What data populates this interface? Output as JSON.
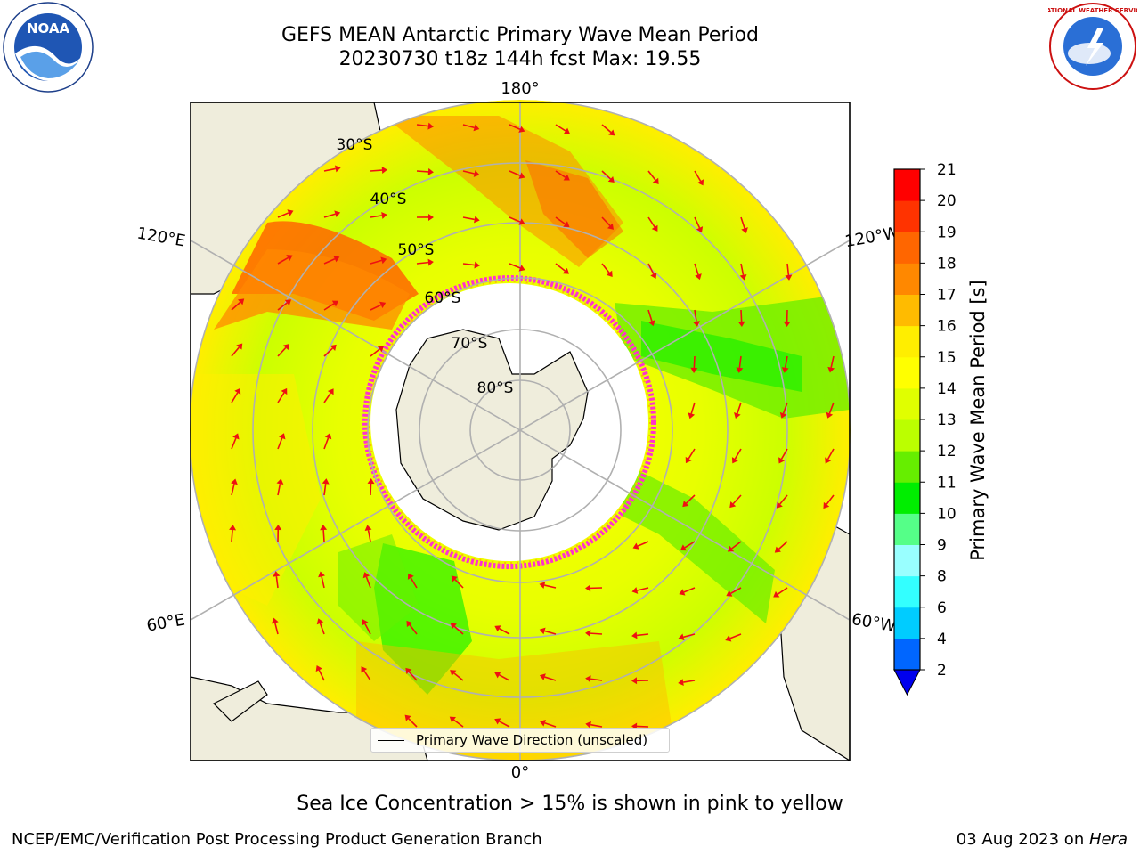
{
  "header": {
    "title_line1": "GEFS MEAN Antarctic Primary Wave Mean Period",
    "title_line2": "20230730 t18z 144h fcst   Max: 19.55"
  },
  "logos": {
    "left": "noaa-logo",
    "left_text": "NOAA",
    "right": "national-weather-service-logo",
    "right_text": "NATIONAL WEATHER SERVICE"
  },
  "map": {
    "projection": "south polar stereographic",
    "longitude_labels": {
      "top": "180°",
      "bottom": "0°",
      "upper_left": "120°E",
      "upper_right": "120°W",
      "lower_left": "60°E",
      "lower_right": "60°W"
    },
    "latitude_labels": [
      "30°S",
      "40°S",
      "50°S",
      "60°S",
      "70°S",
      "80°S"
    ],
    "legend_label": "Primary Wave Direction (unscaled)",
    "land_color": "#efeddc",
    "sea_ice_color": "#ff33cc",
    "arrow_color": "#ee1111"
  },
  "colorbar": {
    "label": "Primary Wave Mean Period [s]",
    "ticks": [
      "2",
      "4",
      "6",
      "8",
      "9",
      "10",
      "11",
      "12",
      "13",
      "14",
      "15",
      "16",
      "17",
      "18",
      "19",
      "20",
      "21"
    ],
    "colors": [
      "#0066ff",
      "#00ccff",
      "#33ffff",
      "#99ffff",
      "#55ff88",
      "#00ee00",
      "#66ee00",
      "#bbff00",
      "#e0ff00",
      "#ffff00",
      "#ffee00",
      "#ffbb00",
      "#ff8800",
      "#ff6600",
      "#ff3300",
      "#ff0000"
    ],
    "extend_color": "#0000ee"
  },
  "note": "Sea Ice Concentration > 15% is shown in pink to yellow",
  "footer": {
    "left": "NCEP/EMC/Verification Post Processing Product Generation Branch",
    "date": "03 Aug 2023 on ",
    "machine": "Hera"
  }
}
